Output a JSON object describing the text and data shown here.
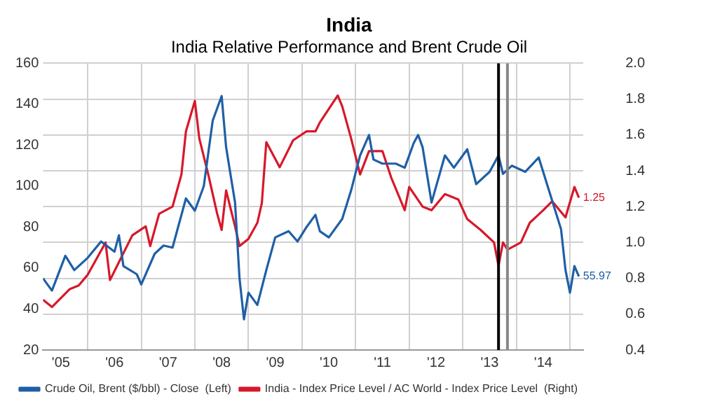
{
  "chart_data": {
    "type": "line",
    "title": "India",
    "subtitle": "India Relative Performance and Brent Crude Oil",
    "xlim": [
      "2005-03",
      "2015-04"
    ],
    "xticks": [
      {
        "value": "2005-07",
        "label": "'05"
      },
      {
        "value": "2006",
        "label": null
      },
      {
        "value": "2006-07",
        "label": "'06"
      },
      {
        "value": "2007",
        "label": null
      },
      {
        "value": "2007-07",
        "label": "'07"
      },
      {
        "value": "2008",
        "label": null
      },
      {
        "value": "2008-07",
        "label": "'08"
      },
      {
        "value": "2009",
        "label": null
      },
      {
        "value": "2009-07",
        "label": "'09"
      },
      {
        "value": "2010",
        "label": null
      },
      {
        "value": "2010-07",
        "label": "'10"
      },
      {
        "value": "2011",
        "label": null
      },
      {
        "value": "2011-07",
        "label": "'11"
      },
      {
        "value": "2012",
        "label": null
      },
      {
        "value": "2012-07",
        "label": "'12"
      },
      {
        "value": "2013",
        "label": null
      },
      {
        "value": "2013-07",
        "label": "'13"
      },
      {
        "value": "2014",
        "label": null
      },
      {
        "value": "2014-07",
        "label": "'14"
      },
      {
        "value": "2015",
        "label": null
      }
    ],
    "ylim": [
      20,
      160
    ],
    "yticks": [
      20,
      40,
      60,
      80,
      100,
      120,
      140,
      160
    ],
    "y2lim": [
      0.4,
      2.0
    ],
    "y2ticks": [
      0.4,
      0.6,
      0.8,
      {
        "value": 1,
        "label": "1.0"
      },
      1.2,
      1.4,
      1.6,
      1.8,
      {
        "value": 2,
        "label": "2.0"
      }
    ],
    "grid": true,
    "legend": "bottom",
    "ref_lines": [
      {
        "axis": "x",
        "value": "2013-09",
        "label": null,
        "color": "#000000"
      },
      {
        "axis": "x",
        "value": "2013-11",
        "label": null,
        "color": "#888888"
      }
    ],
    "series": [
      {
        "name": "Crude Oil, Brent ($/bbl) - Close  (Left)",
        "color": "#1f5fa6",
        "x": [
          "2005-03",
          "2005-05",
          "2005-08",
          "2005-10",
          "2006-01",
          "2006-04",
          "2006-07",
          "2006-08",
          "2006-09",
          "2006-12",
          "2007-01",
          "2007-04",
          "2007-06",
          "2007-08",
          "2007-11",
          "2008-01",
          "2008-03",
          "2008-05",
          "2008-07",
          "2008-08",
          "2008-10",
          "2008-11",
          "2008-12",
          "2009-01",
          "2009-03",
          "2009-05",
          "2009-07",
          "2009-10",
          "2009-12",
          "2010-02",
          "2010-04",
          "2010-05",
          "2010-07",
          "2010-10",
          "2010-12",
          "2011-02",
          "2011-04",
          "2011-05",
          "2011-07",
          "2011-10",
          "2011-12",
          "2012-02",
          "2012-03",
          "2012-04",
          "2012-06",
          "2012-09",
          "2012-11",
          "2013-02",
          "2013-04",
          "2013-07",
          "2013-09",
          "2013-10",
          "2013-12",
          "2014-03",
          "2014-06",
          "2014-08",
          "2014-11",
          "2014-12",
          "2015-01",
          "2015-02",
          "2015-03"
        ],
        "values": [
          55,
          49,
          66,
          59,
          65,
          73,
          68,
          76,
          61,
          57,
          52,
          67,
          71,
          70,
          94,
          88,
          100,
          132,
          144,
          119,
          92,
          55,
          35,
          48,
          42,
          59,
          75,
          78,
          73,
          80,
          86,
          78,
          75,
          84,
          98,
          115,
          125,
          113,
          111,
          111,
          109,
          121,
          125,
          119,
          92,
          115,
          109,
          118,
          101,
          107,
          115,
          106,
          110,
          107,
          114,
          100,
          79,
          59,
          48,
          61,
          55.97
        ],
        "value_labels": [
          null,
          null,
          null,
          null,
          null,
          null,
          null,
          null,
          null,
          null,
          null,
          null,
          null,
          null,
          null,
          null,
          null,
          null,
          null,
          null,
          null,
          null,
          null,
          null,
          null,
          null,
          null,
          null,
          null,
          null,
          null,
          null,
          null,
          null,
          null,
          null,
          null,
          null,
          null,
          null,
          null,
          null,
          null,
          null,
          null,
          null,
          null,
          null,
          null,
          null,
          null,
          null,
          null,
          null,
          null,
          null,
          null,
          null,
          null,
          null,
          "55.97"
        ]
      },
      {
        "name": "India - Index Price Level / AC World - Index Price Level  (Right)",
        "color": "#d7182a",
        "axis": "y2",
        "x": [
          "2005-03",
          "2005-05",
          "2005-09",
          "2005-11",
          "2006-01",
          "2006-03",
          "2006-05",
          "2006-06",
          "2006-08",
          "2006-11",
          "2007-02",
          "2007-03",
          "2007-05",
          "2007-08",
          "2007-10",
          "2007-11",
          "2008-01",
          "2008-02",
          "2008-04",
          "2008-06",
          "2008-07",
          "2008-08",
          "2008-10",
          "2008-11",
          "2009-01",
          "2009-03",
          "2009-04",
          "2009-05",
          "2009-08",
          "2009-11",
          "2010-02",
          "2010-04",
          "2010-05",
          "2010-09",
          "2010-10",
          "2010-12",
          "2011-02",
          "2011-04",
          "2011-07",
          "2011-09",
          "2011-12",
          "2012-01",
          "2012-04",
          "2012-06",
          "2012-09",
          "2012-12",
          "2013-02",
          "2013-05",
          "2013-08",
          "2013-09",
          "2013-10",
          "2013-11",
          "2014-02",
          "2014-04",
          "2014-07",
          "2014-09",
          "2014-12",
          "2015-02",
          "2015-03"
        ],
        "values": [
          0.68,
          0.64,
          0.74,
          0.76,
          0.82,
          0.91,
          1.0,
          0.79,
          0.89,
          1.04,
          1.09,
          0.98,
          1.16,
          1.2,
          1.38,
          1.62,
          1.79,
          1.58,
          1.38,
          1.16,
          1.07,
          1.29,
          1.09,
          0.98,
          1.02,
          1.11,
          1.22,
          1.56,
          1.42,
          1.57,
          1.62,
          1.62,
          1.67,
          1.82,
          1.76,
          1.58,
          1.38,
          1.51,
          1.51,
          1.36,
          1.18,
          1.31,
          1.2,
          1.18,
          1.27,
          1.24,
          1.13,
          1.07,
          1.0,
          0.87,
          1.0,
          0.96,
          1.0,
          1.11,
          1.18,
          1.23,
          1.14,
          1.31,
          1.25
        ],
        "value_labels": [
          null,
          null,
          null,
          null,
          null,
          null,
          null,
          null,
          null,
          null,
          null,
          null,
          null,
          null,
          null,
          null,
          null,
          null,
          null,
          null,
          null,
          null,
          null,
          null,
          null,
          null,
          null,
          null,
          null,
          null,
          null,
          null,
          null,
          null,
          null,
          null,
          null,
          null,
          null,
          null,
          null,
          null,
          null,
          null,
          null,
          null,
          null,
          null,
          null,
          null,
          null,
          null,
          null,
          null,
          null,
          null,
          null,
          null,
          "1.25"
        ]
      }
    ]
  }
}
